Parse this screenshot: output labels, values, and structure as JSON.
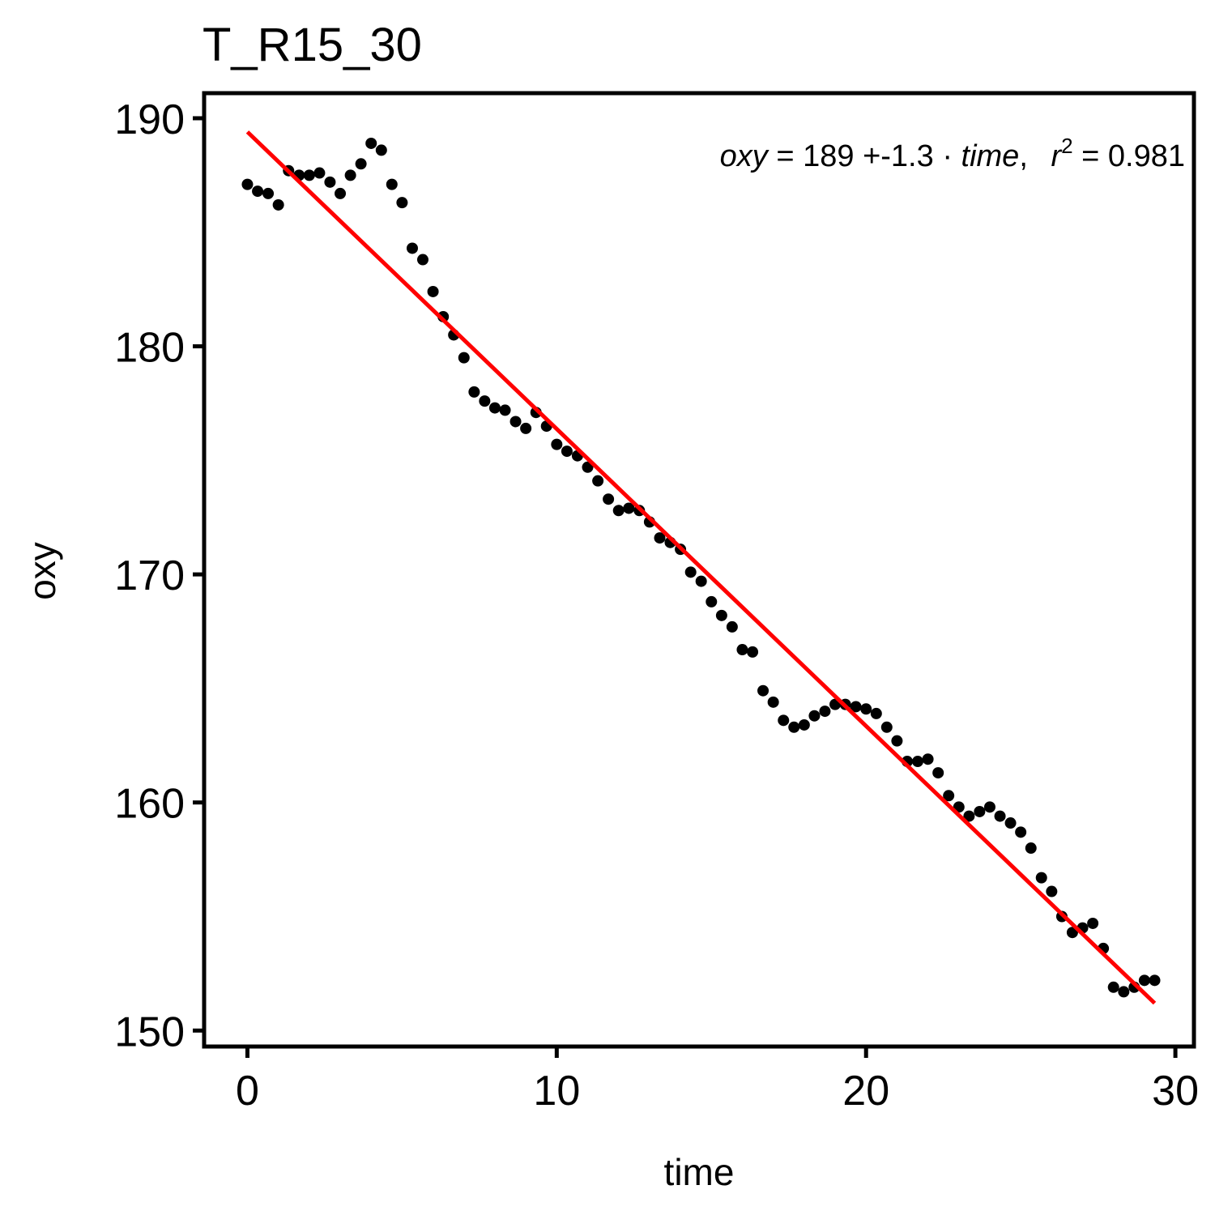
{
  "chart_data": {
    "type": "scatter",
    "title": "T_R15_30",
    "xlabel": "time",
    "ylabel": "oxy",
    "xlim": [
      -1.4,
      30.6
    ],
    "ylim": [
      149.3,
      191.1
    ],
    "xticks": [
      0,
      10,
      20,
      30
    ],
    "yticks": [
      150,
      160,
      170,
      180,
      190
    ],
    "grid": false,
    "legend": "none",
    "point_color": "#000000",
    "fit_color": "#ff0000",
    "x": [
      0.0,
      0.33,
      0.67,
      1.0,
      1.33,
      1.67,
      2.0,
      2.33,
      2.67,
      3.0,
      3.33,
      3.67,
      4.0,
      4.33,
      4.67,
      5.0,
      5.33,
      5.67,
      6.0,
      6.33,
      6.67,
      7.0,
      7.33,
      7.67,
      8.0,
      8.33,
      8.67,
      9.0,
      9.33,
      9.67,
      10.0,
      10.33,
      10.67,
      11.0,
      11.33,
      11.67,
      12.0,
      12.33,
      12.67,
      13.0,
      13.33,
      13.67,
      14.0,
      14.33,
      14.67,
      15.0,
      15.33,
      15.67,
      16.0,
      16.33,
      16.67,
      17.0,
      17.33,
      17.67,
      18.0,
      18.33,
      18.67,
      19.0,
      19.33,
      19.67,
      20.0,
      20.33,
      20.67,
      21.0,
      21.33,
      21.67,
      22.0,
      22.33,
      22.67,
      23.0,
      23.33,
      23.67,
      24.0,
      24.33,
      24.67,
      25.0,
      25.33,
      25.67,
      26.0,
      26.33,
      26.67,
      27.0,
      27.33,
      27.67,
      28.0,
      28.33,
      28.67,
      29.0,
      29.33
    ],
    "y": [
      187.1,
      186.8,
      186.7,
      186.2,
      187.7,
      187.5,
      187.5,
      187.6,
      187.2,
      186.7,
      187.5,
      188.0,
      188.9,
      188.6,
      187.1,
      186.3,
      184.3,
      183.8,
      182.4,
      181.3,
      180.5,
      179.5,
      178.0,
      177.6,
      177.3,
      177.2,
      176.7,
      176.4,
      177.1,
      176.5,
      175.7,
      175.4,
      175.2,
      174.7,
      174.1,
      173.3,
      172.8,
      172.9,
      172.8,
      172.3,
      171.6,
      171.4,
      171.1,
      170.1,
      169.7,
      168.8,
      168.2,
      167.7,
      166.7,
      166.6,
      164.9,
      164.4,
      163.6,
      163.3,
      163.4,
      163.8,
      164.0,
      164.3,
      164.3,
      164.2,
      164.1,
      163.9,
      163.3,
      162.7,
      161.8,
      161.8,
      161.9,
      161.3,
      160.3,
      159.8,
      159.4,
      159.6,
      159.8,
      159.4,
      159.1,
      158.7,
      158.0,
      156.7,
      156.1,
      155.0,
      154.3,
      154.5,
      154.7,
      153.6,
      151.9,
      151.7,
      151.9,
      152.2,
      152.2
    ],
    "fit": {
      "x": [
        0,
        29.33
      ],
      "y": [
        189.4,
        151.2
      ]
    },
    "annotation": {
      "lhs": "oxy",
      "eq": "=",
      "intercept": "189",
      "op": "+",
      "slope": "-1.3",
      "dot": "·",
      "var": "time",
      "comma": ",",
      "r": "r",
      "sup": "2",
      "r2_eq": "=",
      "r2": "0.981"
    }
  }
}
